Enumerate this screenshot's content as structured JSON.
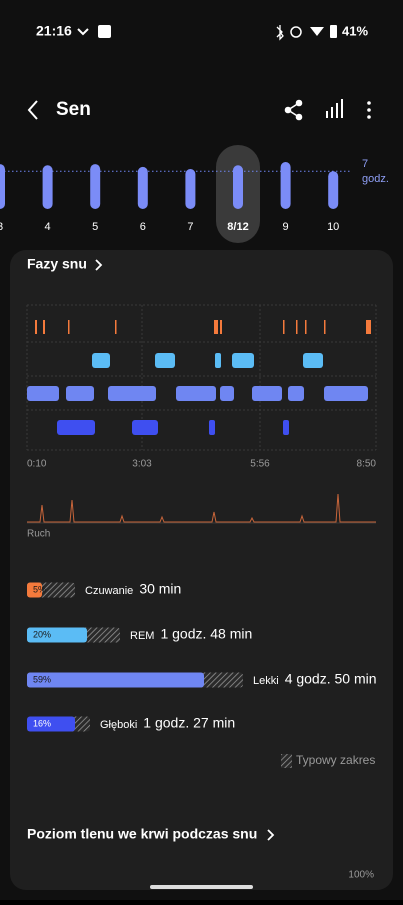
{
  "status": {
    "time": "21:16",
    "battery": "41%"
  },
  "header": {
    "title": "Sen"
  },
  "strip": {
    "days": [
      "3",
      "4",
      "5",
      "6",
      "7",
      "8/12",
      "9",
      "10"
    ],
    "hours": [
      8.3,
      8.1,
      8.3,
      7.8,
      7.4,
      8.1,
      8.7,
      7.0
    ],
    "goal": 7,
    "goal_unit": "godz."
  },
  "phases": {
    "title": "Fazy snu",
    "time_labels": [
      "0:10",
      "3:03",
      "5:56",
      "8:50"
    ],
    "movement_label": "Ruch",
    "stages": [
      {
        "name": "Czuwanie",
        "percent": 5,
        "percent_label": "5%",
        "typical_max": 16,
        "duration": "30 min",
        "color": "#f47a3c"
      },
      {
        "name": "REM",
        "percent": 20,
        "percent_label": "20%",
        "typical_max": 31,
        "duration": "1 godz. 48 min",
        "color": "#5bbcf5"
      },
      {
        "name": "Lekki",
        "percent": 59,
        "percent_label": "59%",
        "typical_max": 72,
        "duration": "4 godz. 50 min",
        "color": "#6f86f2"
      },
      {
        "name": "Głęboki",
        "percent": 16,
        "percent_label": "16%",
        "typical_max": 21,
        "duration": "1 godz. 27 min",
        "color": "#3f4ff0"
      }
    ],
    "legend": "Typowy zakres"
  },
  "oxygen": {
    "title": "Poziom tlenu we krwi podczas snu",
    "top_label": "100%"
  }
}
